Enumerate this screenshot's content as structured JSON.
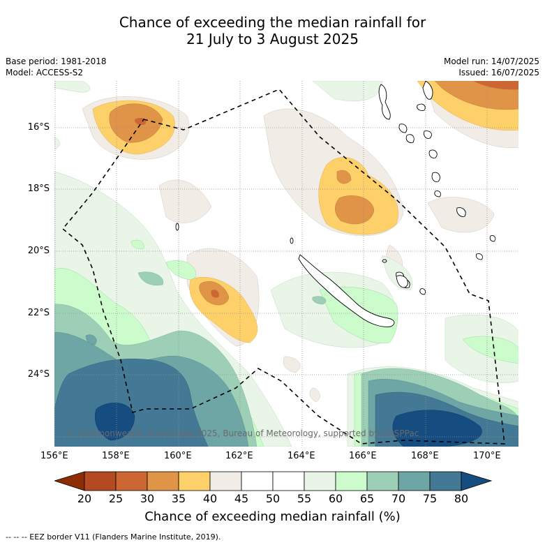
{
  "title_line1": "Chance of exceeding the median rainfall for",
  "title_line2": "21 July to 3 August 2025",
  "meta": {
    "base_period": "Base period: 1981-2018",
    "model": "Model: ACCESS-S2",
    "model_run": "Model run: 14/07/2025",
    "issued": "Issued: 16/07/2025"
  },
  "axes": {
    "lat_labels": [
      "16°S",
      "18°S",
      "20°S",
      "22°S",
      "24°S"
    ],
    "lon_labels": [
      "156°E",
      "158°E",
      "160°E",
      "162°E",
      "164°E",
      "166°E",
      "168°E",
      "170°E"
    ]
  },
  "copyright": "© Commonwealth of Australia 2025, Bureau of Meteorology, supported by COSPPac",
  "colorbar": {
    "ticks": [
      "20",
      "25",
      "30",
      "35",
      "40",
      "45",
      "50",
      "55",
      "60",
      "65",
      "70",
      "75",
      "80"
    ],
    "colors": {
      "lt20": "#8c2d04",
      "20-25": "#b34a22",
      "25-30": "#cc6633",
      "30-35": "#e09448",
      "35-40": "#fdd06a",
      "40-45": "#f1ede6",
      "45-50": "#ffffff",
      "50-55": "#ffffff",
      "55-60": "#e8f5e7",
      "60-65": "#ccfccc",
      "65-70": "#9ccfb5",
      "70-75": "#6ea5a5",
      "75-80": "#437995",
      "gt80": "#154d80"
    },
    "label": "Chance of exceeding median rainfall (%)"
  },
  "footer": "--  --  -- EEZ border V11 (Flanders Marine Institute, 2019)."
}
